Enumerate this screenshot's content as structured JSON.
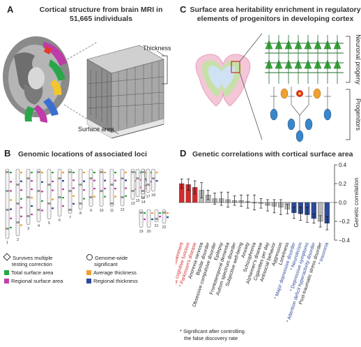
{
  "panels": {
    "A": {
      "letter": "A",
      "title_line1": "Cortical structure from brain MRI in",
      "title_line2": "51,665 individuals",
      "label_thickness": "Thickness",
      "label_surface": "Surface area"
    },
    "B": {
      "letter": "B",
      "title": "Genomic locations of associated loci",
      "chromosomes": [
        "1",
        "2",
        "3",
        "4",
        "5",
        "6",
        "7",
        "8",
        "9",
        "10",
        "11",
        "12",
        "13",
        "14",
        "15",
        "16",
        "17",
        "18",
        "19",
        "20",
        "21",
        "22"
      ],
      "legend": {
        "survives": "Survives multiple testing correction",
        "survives_l1": "Survives multiple",
        "survives_l2": "testing correction",
        "genome_l1": "Genome-wide",
        "genome_l2": "significant",
        "total_sa": "Total surface area",
        "avg_th": "Average thickness",
        "reg_sa": "Regional surface area",
        "reg_th": "Regional thickness"
      },
      "colors": {
        "total_sa": "#27a844",
        "avg_th": "#f0a030",
        "reg_sa": "#c040a8",
        "reg_th": "#2c4a9c"
      }
    },
    "C": {
      "letter": "C",
      "title_line1": "Surface area heritability enrichment in regulatory",
      "title_line2": "elements of progenitors in developing cortex",
      "label_neuronal": "Neuronal progeny",
      "label_progenitors": "Progenitors"
    },
    "D": {
      "letter": "D",
      "title": "Genetic correlations with cortical surface area",
      "axis_label": "Genetic correlation",
      "yticks": [
        "0.4",
        "0.2",
        "0.0",
        "−0.2",
        "−0.4"
      ],
      "footnote_l1": "* Significant after controlling",
      "footnote_l2": "the false discovery rate"
    }
  },
  "chart_data": {
    "type": "bar",
    "ylabel": "Genetic correlation",
    "ylim": [
      -0.4,
      0.4
    ],
    "categories": [
      "Educational attainment",
      "General cognitive function",
      "Parkinson's disease",
      "Anorexia nervosa",
      "Bipolar disorder",
      "Obsessive compulsive disorder",
      "Epilepsy",
      "Frontotemporal dementia",
      "Autism spectrum disorder",
      "Subjective well-being",
      "Anxiety",
      "Schizophrenia",
      "Alzheimer's disease",
      "Cigarettes per day",
      "Antisocial behavior",
      "Aggression",
      "Loneliness",
      "Major depressive disorder",
      "Neuroticism",
      "Depressive symptoms",
      "Attention deficit hyperactivity disorder",
      "Post-traumatic stress disorder",
      "Insomnia"
    ],
    "significant": [
      true,
      true,
      true,
      false,
      false,
      false,
      false,
      false,
      false,
      false,
      false,
      false,
      false,
      false,
      false,
      false,
      false,
      true,
      true,
      true,
      true,
      false,
      true
    ],
    "values": [
      0.2,
      0.19,
      0.16,
      0.13,
      0.08,
      0.04,
      0.04,
      0.03,
      0.02,
      0.02,
      0.01,
      0.0,
      -0.01,
      -0.03,
      -0.04,
      -0.05,
      -0.07,
      -0.11,
      -0.12,
      -0.13,
      -0.17,
      -0.2,
      -0.22
    ],
    "groups": [
      "red",
      "red",
      "red",
      "gray",
      "gray",
      "gray",
      "gray",
      "gray",
      "gray",
      "gray",
      "gray",
      "gray",
      "gray",
      "gray",
      "gray",
      "gray",
      "gray",
      "blue",
      "blue",
      "blue",
      "blue",
      "gray",
      "blue"
    ],
    "colors": {
      "red": "#d42a2a",
      "gray": "#b8b8b8",
      "blue": "#2c4a9c"
    }
  }
}
